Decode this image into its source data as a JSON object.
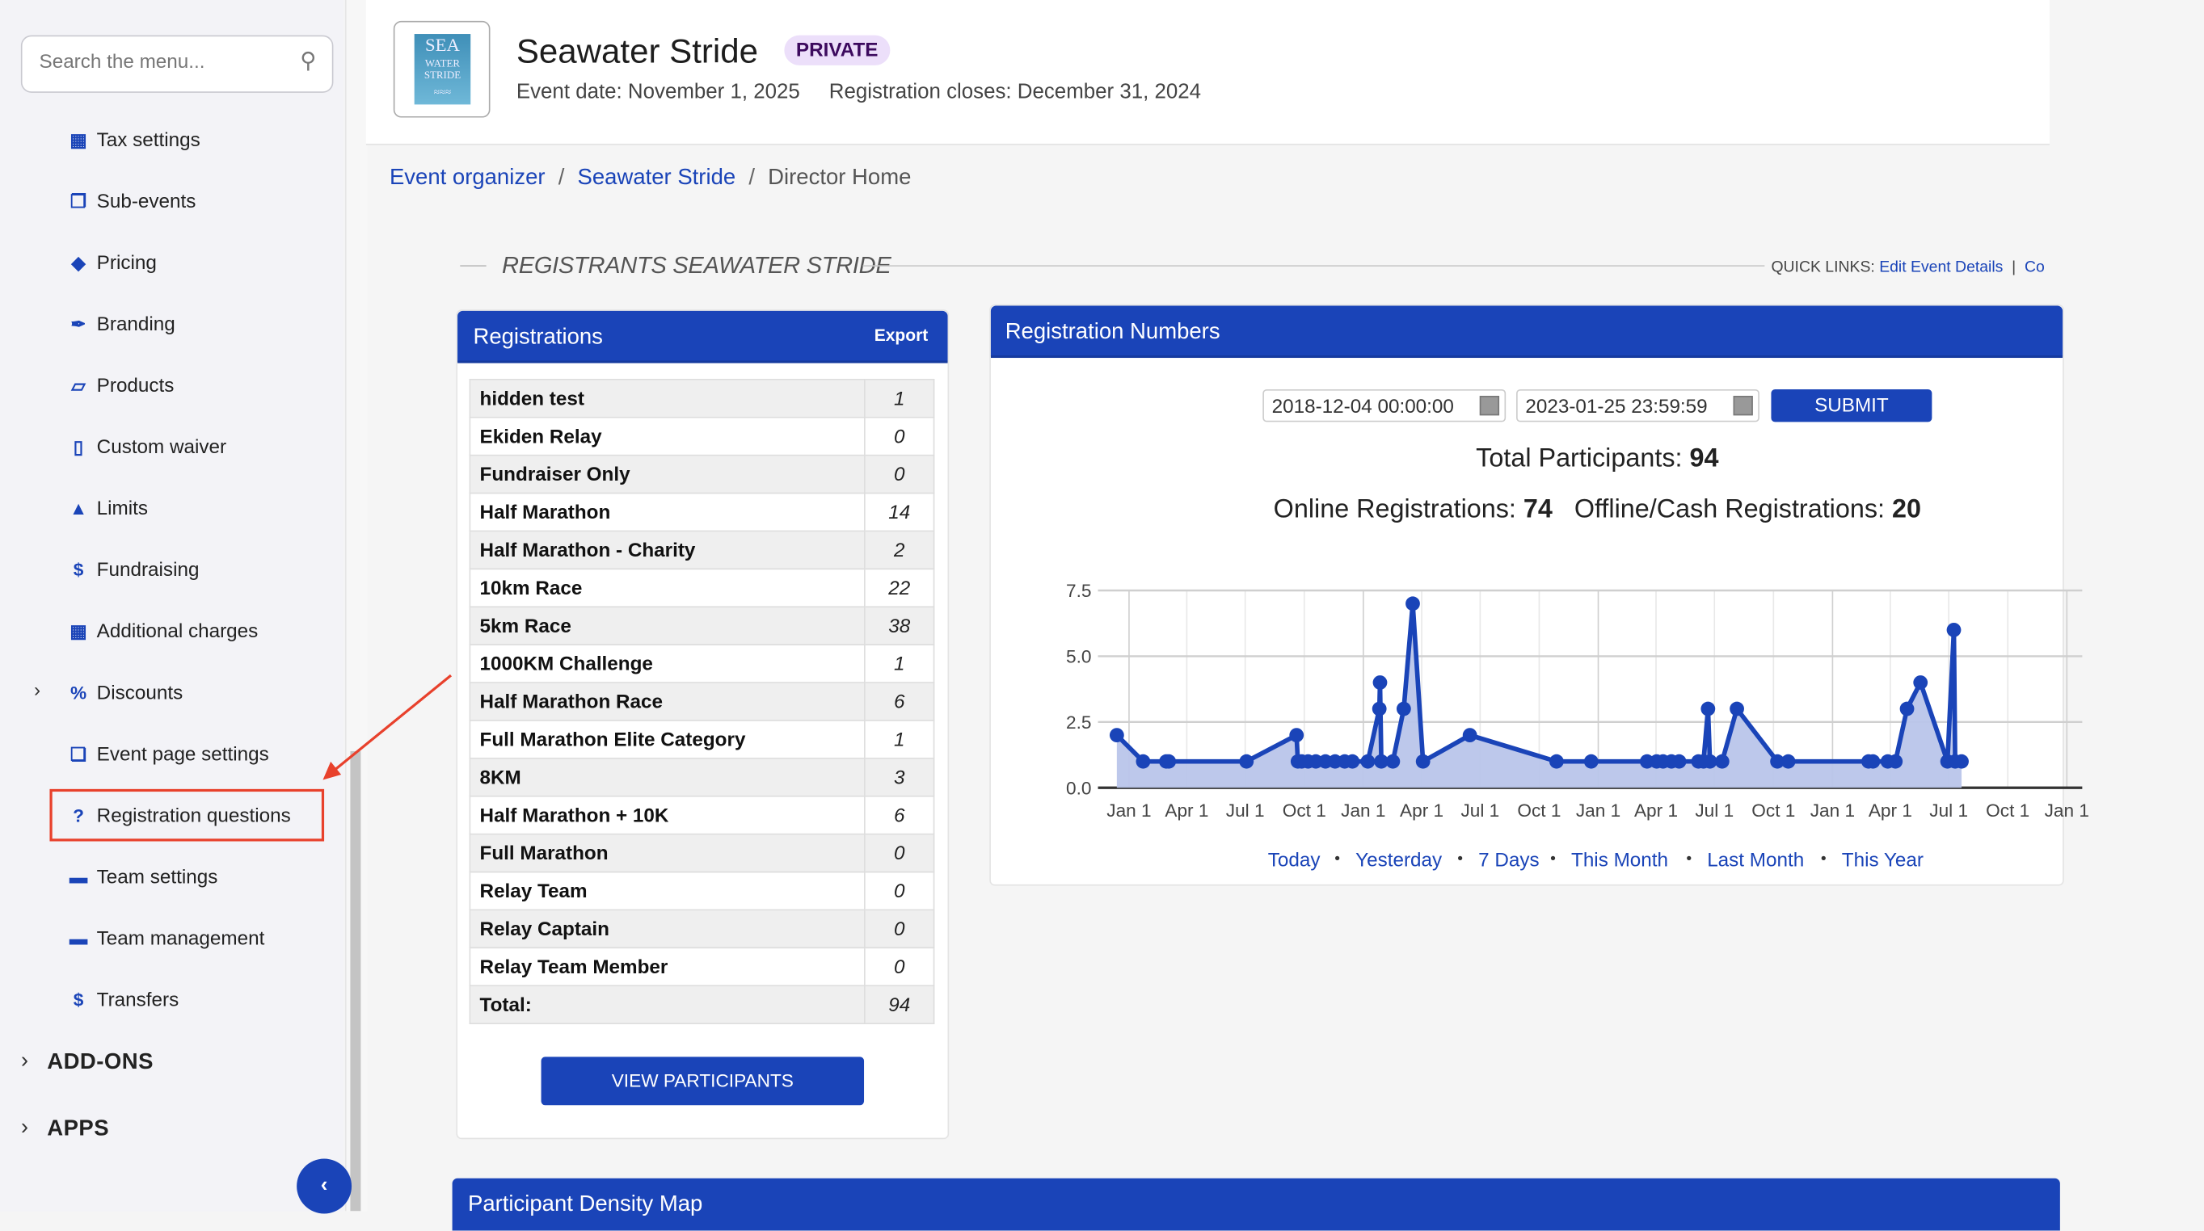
{
  "sidebar": {
    "search_placeholder": "Search the menu...",
    "items": [
      {
        "label": "Tax settings",
        "icon": "calculator-icon"
      },
      {
        "label": "Sub-events",
        "icon": "clipboard-icon"
      },
      {
        "label": "Pricing",
        "icon": "tags-icon"
      },
      {
        "label": "Branding",
        "icon": "eyedropper-icon"
      },
      {
        "label": "Products",
        "icon": "basket-icon"
      },
      {
        "label": "Custom waiver",
        "icon": "file-icon"
      },
      {
        "label": "Limits",
        "icon": "warning-icon"
      },
      {
        "label": "Fundraising",
        "icon": "dollar-icon"
      },
      {
        "label": "Additional charges",
        "icon": "calculator-icon"
      },
      {
        "label": "Discounts",
        "icon": "percent-icon"
      },
      {
        "label": "Event page settings",
        "icon": "copy-icon"
      },
      {
        "label": "Registration questions",
        "icon": "question-icon"
      },
      {
        "label": "Team settings",
        "icon": "id-card-icon"
      },
      {
        "label": "Team management",
        "icon": "id-card-icon"
      },
      {
        "label": "Transfers",
        "icon": "dollar-icon"
      }
    ],
    "groups": [
      "ADD-ONS",
      "APPS"
    ],
    "highlight_color": "#e8412c"
  },
  "header": {
    "logo_text": [
      "SEA",
      "WATER",
      "STRIDE"
    ],
    "title": "Seawater Stride",
    "badge": "PRIVATE",
    "event_date": "Event date: November 1, 2025",
    "reg_closes": "Registration closes: December 31, 2024"
  },
  "breadcrumb": [
    "Event organizer",
    "Seawater Stride",
    "Director Home"
  ],
  "section": {
    "title": "REGISTRANTS SEAWATER STRIDE",
    "quick_links_label": "QUICK LINKS:",
    "quick_link_1": "Edit Event Details",
    "quick_link_2": "Co"
  },
  "registrations": {
    "title": "Registrations",
    "export": "Export",
    "rows": [
      {
        "name": "hidden test",
        "count": "1"
      },
      {
        "name": "Ekiden Relay",
        "count": "0"
      },
      {
        "name": "Fundraiser Only",
        "count": "0"
      },
      {
        "name": "Half Marathon",
        "count": "14"
      },
      {
        "name": "Half Marathon - Charity",
        "count": "2"
      },
      {
        "name": "10km Race",
        "count": "22"
      },
      {
        "name": "5km Race",
        "count": "38"
      },
      {
        "name": "1000KM Challenge",
        "count": "1"
      },
      {
        "name": "Half Marathon Race",
        "count": "6"
      },
      {
        "name": "Full Marathon Elite Category",
        "count": "1"
      },
      {
        "name": "8KM",
        "count": "3"
      },
      {
        "name": "Half Marathon + 10K",
        "count": "6"
      },
      {
        "name": "Full Marathon",
        "count": "0"
      },
      {
        "name": "Relay Team",
        "count": "0"
      },
      {
        "name": "Relay Captain",
        "count": "0"
      },
      {
        "name": "Relay Team Member",
        "count": "0"
      },
      {
        "name": "Total:",
        "count": "94"
      }
    ],
    "view_button": "VIEW PARTICIPANTS"
  },
  "numbers": {
    "title": "Registration Numbers",
    "start": "2018-12-04 00:00:00",
    "end": "2023-01-25 23:59:59",
    "submit": "SUBMIT",
    "total_label": "Total Participants: ",
    "total": "94",
    "online_label": "Online Registrations: ",
    "online": "74",
    "offline_label": "Offline/Cash Registrations: ",
    "offline": "20",
    "ranges": [
      "Today",
      "Yesterday",
      "7 Days",
      "This Month",
      "Last Month",
      "This Year"
    ]
  },
  "chart_data": {
    "type": "area",
    "x_range": [
      "2018-12-04",
      "2023-01-25"
    ],
    "ylim": [
      0,
      7.5
    ],
    "y_ticks": [
      "0.0",
      "2.5",
      "5.0",
      "7.5"
    ],
    "x_ticks": [
      [
        "2019-01-01",
        "Jan 1"
      ],
      [
        "2019-04-01",
        "Apr 1"
      ],
      [
        "2019-07-01",
        "Jul 1"
      ],
      [
        "2019-10-01",
        "Oct 1"
      ],
      [
        "2020-01-01",
        "Jan 1"
      ],
      [
        "2020-04-01",
        "Apr 1"
      ],
      [
        "2020-07-01",
        "Jul 1"
      ],
      [
        "2020-10-01",
        "Oct 1"
      ],
      [
        "2021-01-01",
        "Jan 1"
      ],
      [
        "2021-04-01",
        "Apr 1"
      ],
      [
        "2021-07-01",
        "Jul 1"
      ],
      [
        "2021-10-01",
        "Oct 1"
      ],
      [
        "2022-01-01",
        "Jan 1"
      ],
      [
        "2022-04-01",
        "Apr 1"
      ],
      [
        "2022-07-01",
        "Jul 1"
      ],
      [
        "2022-10-01",
        "Oct 1"
      ],
      [
        "2023-01-01",
        "Jan 1"
      ]
    ],
    "grid": true,
    "line_color": "#1a44b8",
    "fill_color": "#b9c5ea",
    "points": [
      [
        "2018-12-13",
        2
      ],
      [
        "2019-01-23",
        1
      ],
      [
        "2019-02-28",
        1
      ],
      [
        "2019-03-04",
        1
      ],
      [
        "2019-07-03",
        1
      ],
      [
        "2019-09-19",
        2
      ],
      [
        "2019-09-21",
        1
      ],
      [
        "2019-09-27",
        1
      ],
      [
        "2019-10-07",
        1
      ],
      [
        "2019-10-19",
        1
      ],
      [
        "2019-11-03",
        1
      ],
      [
        "2019-11-18",
        1
      ],
      [
        "2019-12-03",
        1
      ],
      [
        "2019-12-15",
        1
      ],
      [
        "2020-01-08",
        1
      ],
      [
        "2020-01-26",
        3
      ],
      [
        "2020-01-27",
        4
      ],
      [
        "2020-01-29",
        1
      ],
      [
        "2020-02-16",
        1
      ],
      [
        "2020-03-04",
        3
      ],
      [
        "2020-03-18",
        7
      ],
      [
        "2020-04-03",
        1
      ],
      [
        "2020-06-15",
        2
      ],
      [
        "2020-10-28",
        1
      ],
      [
        "2020-12-21",
        1
      ],
      [
        "2021-03-18",
        1
      ],
      [
        "2021-04-02",
        1
      ],
      [
        "2021-04-12",
        1
      ],
      [
        "2021-04-25",
        1
      ],
      [
        "2021-05-07",
        1
      ],
      [
        "2021-06-06",
        1
      ],
      [
        "2021-06-14",
        1
      ],
      [
        "2021-06-21",
        3
      ],
      [
        "2021-06-24",
        1
      ],
      [
        "2021-07-13",
        1
      ],
      [
        "2021-08-05",
        3
      ],
      [
        "2021-10-07",
        1
      ],
      [
        "2021-10-24",
        1
      ],
      [
        "2022-02-26",
        1
      ],
      [
        "2022-03-05",
        1
      ],
      [
        "2022-03-28",
        1
      ],
      [
        "2022-04-09",
        1
      ],
      [
        "2022-04-27",
        3
      ],
      [
        "2022-05-18",
        4
      ],
      [
        "2022-06-29",
        1
      ],
      [
        "2022-07-09",
        6
      ],
      [
        "2022-07-11",
        1
      ],
      [
        "2022-07-21",
        1
      ]
    ]
  },
  "map": {
    "title": "Participant Density Map"
  }
}
